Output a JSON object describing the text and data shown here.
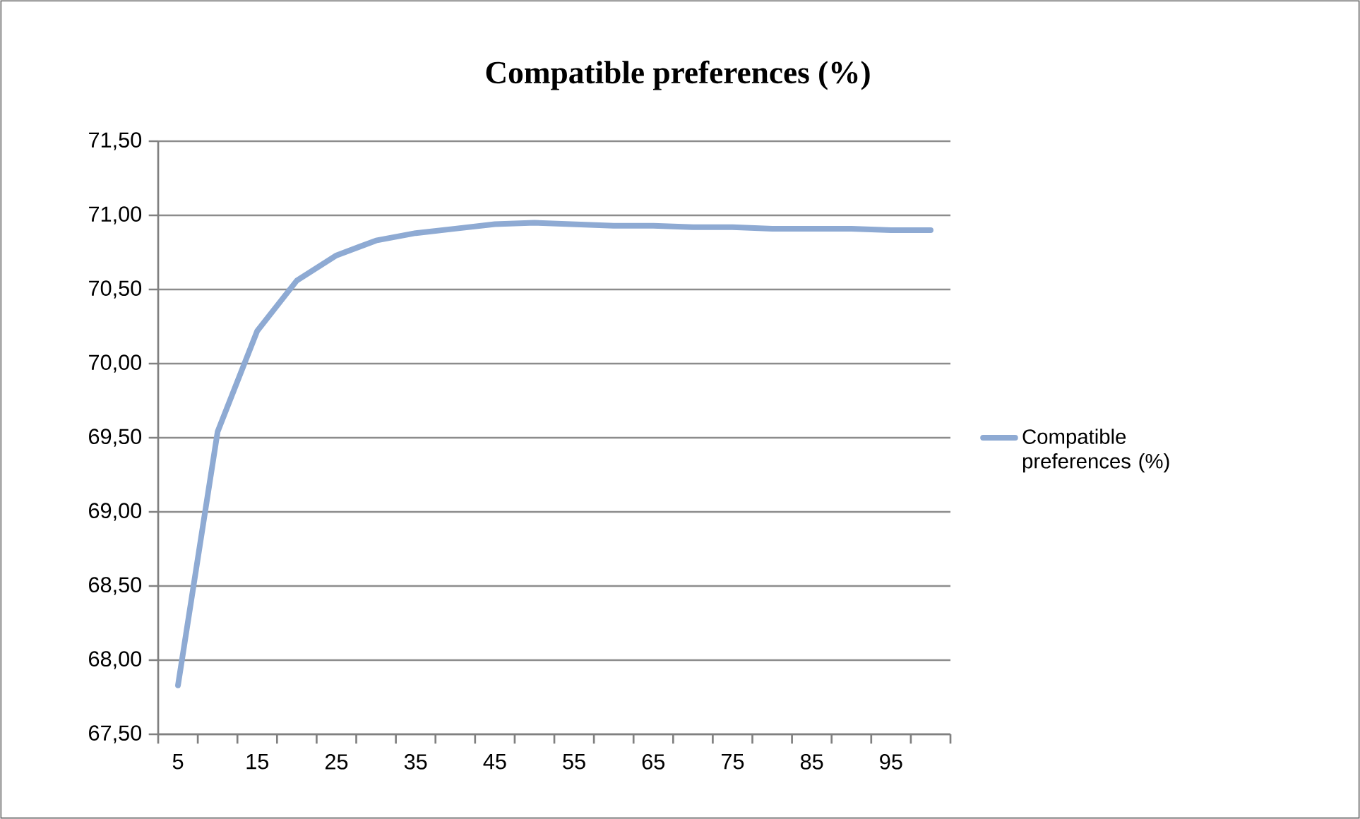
{
  "chart_data": {
    "type": "line",
    "title": "Compatible preferences (%)",
    "categories": [
      "5",
      null,
      "15",
      null,
      "25",
      null,
      "35",
      null,
      "45",
      null,
      "55",
      null,
      "65",
      null,
      "75",
      null,
      "85",
      null,
      "95",
      null
    ],
    "series": [
      {
        "name": "Compatible preferences (%)",
        "color": "#8eaad3",
        "values": [
          67.83,
          69.54,
          70.22,
          70.56,
          70.73,
          70.83,
          70.88,
          70.91,
          70.94,
          70.95,
          70.94,
          70.93,
          70.93,
          70.92,
          70.92,
          70.91,
          70.91,
          70.91,
          70.9,
          70.9
        ]
      }
    ],
    "ylim": [
      67.5,
      71.5
    ],
    "yticks": [
      {
        "value": 67.5,
        "label": "67,50"
      },
      {
        "value": 68,
        "label": "68,00"
      },
      {
        "value": 68.5,
        "label": "68,50"
      },
      {
        "value": 69,
        "label": "69,00"
      },
      {
        "value": 69.5,
        "label": "69,50"
      },
      {
        "value": 70,
        "label": "70,00"
      },
      {
        "value": 70.5,
        "label": "70,50"
      },
      {
        "value": 71,
        "label": "71,00"
      },
      {
        "value": 71.5,
        "label": "71,50"
      }
    ],
    "grid": "y",
    "legend": "right",
    "marker": "none",
    "line_style": "solid"
  }
}
